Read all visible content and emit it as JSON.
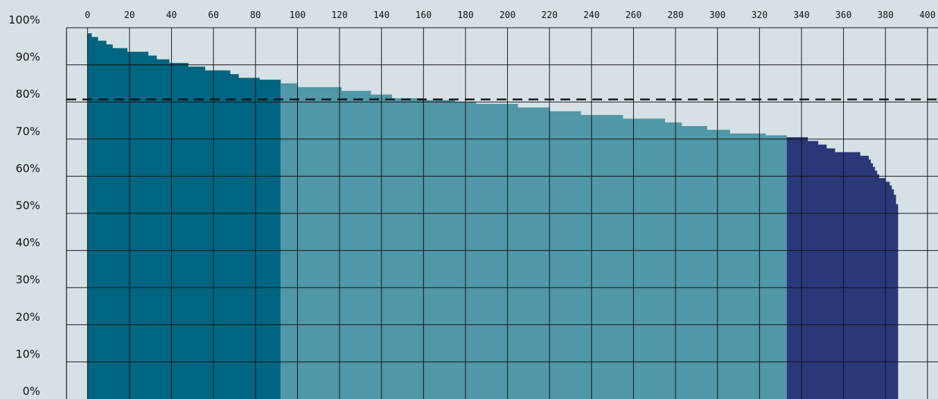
{
  "chart_data": {
    "type": "area",
    "title": "",
    "xlabel": "",
    "ylabel": "",
    "xlim": [
      -10,
      405
    ],
    "ylim": [
      0,
      100
    ],
    "x_ticks": [
      0,
      20,
      40,
      60,
      80,
      100,
      120,
      140,
      160,
      180,
      200,
      220,
      240,
      260,
      280,
      300,
      320,
      340,
      360,
      380,
      400
    ],
    "x_tick_labels": [
      "0",
      "20",
      "40",
      "60",
      "80",
      "100",
      "120",
      "140",
      "160",
      "180",
      "200",
      "220",
      "240",
      "260",
      "280",
      "300",
      "320",
      "340",
      "360",
      "380",
      "400"
    ],
    "y_ticks": [
      0,
      10,
      20,
      30,
      40,
      50,
      60,
      70,
      80,
      90,
      100
    ],
    "y_tick_labels": [
      "0%",
      "10%",
      "20%",
      "30%",
      "40%",
      "50%",
      "60%",
      "70%",
      "80%",
      "90%",
      "100%"
    ],
    "grid": true,
    "reference_line": {
      "y": 80.7,
      "style": "dashed",
      "color": "#111111"
    },
    "series": [
      {
        "color": "#006580",
        "points": [
          [
            0,
            98.5
          ],
          [
            2,
            97.5
          ],
          [
            5,
            96.5
          ],
          [
            9,
            95.5
          ],
          [
            12,
            94.5
          ],
          [
            19,
            93.5
          ],
          [
            29,
            92.5
          ],
          [
            33,
            91.5
          ],
          [
            39,
            90.5
          ],
          [
            48,
            89.5
          ],
          [
            56,
            88.5
          ],
          [
            68,
            87.5
          ],
          [
            72,
            86.5
          ],
          [
            82,
            86
          ],
          [
            92,
            86
          ]
        ]
      },
      {
        "color": "#5097a7",
        "points": [
          [
            92,
            85
          ],
          [
            100,
            84
          ],
          [
            121,
            83
          ],
          [
            135,
            82
          ],
          [
            145,
            81
          ],
          [
            160,
            80.5
          ],
          [
            175,
            80
          ],
          [
            185,
            79.5
          ],
          [
            205,
            78.5
          ],
          [
            220,
            77.5
          ],
          [
            235,
            76.5
          ],
          [
            255,
            75.5
          ],
          [
            275,
            74.5
          ],
          [
            283,
            73.5
          ],
          [
            295,
            72.5
          ],
          [
            306,
            71.5
          ],
          [
            323,
            71
          ],
          [
            333,
            71
          ]
        ]
      },
      {
        "color": "#2a3778",
        "points": [
          [
            333,
            70.5
          ],
          [
            343,
            69.5
          ],
          [
            348,
            68.5
          ],
          [
            352,
            67.5
          ],
          [
            356,
            66.5
          ],
          [
            368,
            65.5
          ],
          [
            372,
            64.5
          ],
          [
            373,
            63.5
          ],
          [
            374,
            62.5
          ],
          [
            375,
            61.5
          ],
          [
            376,
            60.5
          ],
          [
            377,
            59.5
          ],
          [
            380,
            58.5
          ],
          [
            382,
            57.5
          ],
          [
            383,
            56.5
          ],
          [
            384,
            55
          ],
          [
            385,
            52.5
          ],
          [
            386,
            52.5
          ]
        ]
      }
    ]
  }
}
